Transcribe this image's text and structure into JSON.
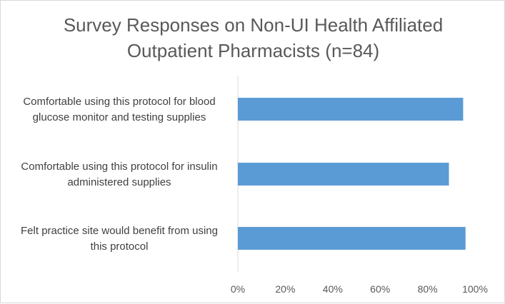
{
  "chart_data": {
    "type": "bar",
    "orientation": "horizontal",
    "title": [
      "Survey Responses on Non-UI Health Affiliated",
      "Outpatient Pharmacists (n=84)"
    ],
    "categories": [
      [
        "Comfortable using this protocol for blood",
        "glucose monitor and testing supplies"
      ],
      [
        "Comfortable using this protocol for insulin",
        "administered supplies"
      ],
      [
        "Felt practice site would benefit from using",
        "this protocol"
      ]
    ],
    "values": [
      95,
      89,
      96
    ],
    "xlim": [
      0,
      100
    ],
    "xticks": [
      0,
      20,
      40,
      60,
      80,
      100
    ],
    "tick_labels": [
      "0%",
      "20%",
      "40%",
      "60%",
      "80%",
      "100%"
    ],
    "grid": false,
    "legend": "none",
    "bar_color": "#5b9bd5",
    "axis_color": "#d9d9d9"
  }
}
